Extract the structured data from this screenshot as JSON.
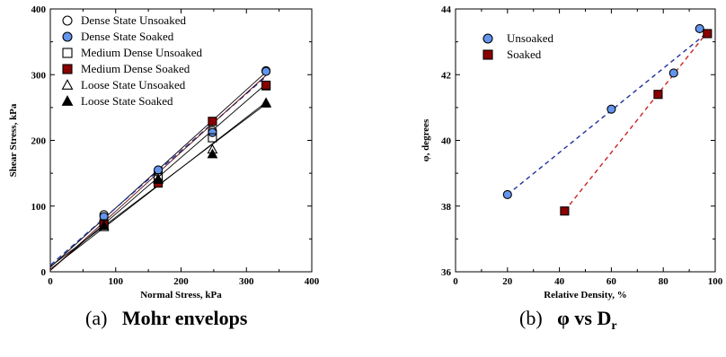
{
  "chart_data": [
    {
      "type": "scatter",
      "title": "",
      "xlabel": "Normal Stress, kPa",
      "ylabel": "Shear Stress, kPa",
      "xlim": [
        0,
        400
      ],
      "ylim": [
        0,
        400
      ],
      "xticks": [
        0,
        100,
        200,
        300,
        400
      ],
      "yticks": [
        0,
        100,
        200,
        300,
        400
      ],
      "grid": false,
      "legend_position": "top-left",
      "caption": {
        "prefix": "(a)",
        "title": "Mohr envelops"
      },
      "series": [
        {
          "name": "Dense State Unsoaked",
          "marker": "circle-open",
          "color": "#000000",
          "x": [
            82,
            165,
            248,
            330
          ],
          "y": [
            87,
            152,
            215,
            306
          ],
          "fit": [
            7,
            0.9
          ]
        },
        {
          "name": "Dense State Soaked",
          "marker": "circle-filled",
          "color": "#6495ED",
          "x": [
            82,
            165,
            248,
            330
          ],
          "y": [
            84,
            155,
            212,
            305
          ],
          "fit": [
            10,
            0.87
          ]
        },
        {
          "name": "Medium Dense  Unsoaked",
          "marker": "square-open",
          "color": "#000000",
          "x": [
            82,
            165,
            248,
            330
          ],
          "y": [
            73,
            143,
            204,
            283
          ],
          "fit": [
            2,
            0.86
          ]
        },
        {
          "name": "Medium Dense Soaked",
          "marker": "square-filled",
          "color": "#8B0000",
          "x": [
            82,
            165,
            248,
            330
          ],
          "y": [
            72,
            135,
            229,
            284
          ],
          "fit": [
            2,
            0.9
          ]
        },
        {
          "name": "Loose State Unsoaked",
          "marker": "triangle-open",
          "color": "#000000",
          "x": [
            82,
            165,
            248,
            330
          ],
          "y": [
            68,
            141,
            186,
            257
          ],
          "fit": [
            4,
            0.77
          ]
        },
        {
          "name": "Loose State Soaked",
          "marker": "triangle-filled",
          "color": "#000000",
          "x": [
            82,
            165,
            248,
            330
          ],
          "y": [
            70,
            140,
            179,
            256
          ],
          "fit": [
            8,
            0.75
          ]
        }
      ]
    },
    {
      "type": "scatter",
      "title": "",
      "xlabel": "Relative Density, %",
      "ylabel": "φ, degrees",
      "xlim": [
        0,
        100
      ],
      "ylim": [
        36,
        44
      ],
      "xticks": [
        0,
        20,
        40,
        60,
        80,
        100
      ],
      "yticks": [
        36,
        38,
        40,
        42,
        44
      ],
      "grid": false,
      "legend_position": "top-left",
      "caption": {
        "prefix": "(b)",
        "title": "φ vs D",
        "subscript": "r"
      },
      "series": [
        {
          "name": "Unsoaked",
          "marker": "circle-filled",
          "color": "#6495ED",
          "line_color": "#1F2F9F",
          "x": [
            20,
            60,
            84,
            94
          ],
          "y": [
            38.35,
            40.95,
            42.05,
            43.4
          ],
          "trend": [
            [
              20,
              38.35
            ],
            [
              96.5,
              43.25
            ]
          ]
        },
        {
          "name": "Soaked",
          "marker": "square-filled",
          "color": "#8B0000",
          "line_color": "#CC2222",
          "x": [
            42,
            78,
            97
          ],
          "y": [
            37.85,
            41.4,
            43.25
          ],
          "trend": [
            [
              42,
              37.85
            ],
            [
              96.5,
              43.25
            ]
          ]
        }
      ]
    }
  ]
}
